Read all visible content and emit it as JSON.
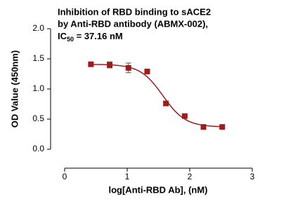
{
  "chart_data": {
    "type": "scatter",
    "title_lines": [
      "Inhibition of RBD binding to sACE2",
      "by Anti-RBD antibody (ABMX-002),"
    ],
    "ic_line": {
      "prefix": "IC",
      "subscript": "50",
      "rest": " = 37.16 nM"
    },
    "x_label": "log[Anti-RBD Ab], (nM)",
    "y_label": "OD Value (450nm)",
    "x": [
      0.42,
      0.72,
      1.02,
      1.32,
      1.62,
      1.92,
      2.22,
      2.52
    ],
    "values": [
      1.41,
      1.4,
      1.35,
      1.29,
      0.76,
      0.55,
      0.37,
      0.37
    ],
    "errors": [
      0.02,
      0.05,
      0.08,
      0.02,
      0.02,
      0.02,
      0.02,
      0.02
    ],
    "fit": {
      "top": 1.41,
      "bottom": 0.37,
      "log_ic50": 1.57,
      "hill": 2.4
    },
    "color": "#a01c1c",
    "xlim": [
      0,
      3
    ],
    "xticks": [
      0,
      1,
      2,
      3
    ],
    "ylim": [
      0,
      2
    ],
    "yticks": [
      {
        "value": 0,
        "label": "0.0"
      },
      {
        "value": 0.5,
        "label": "0.5"
      },
      {
        "value": 1,
        "label": "1.0"
      },
      {
        "value": 1.5,
        "label": "1.5"
      },
      {
        "value": 2,
        "label": "2.0"
      }
    ]
  }
}
